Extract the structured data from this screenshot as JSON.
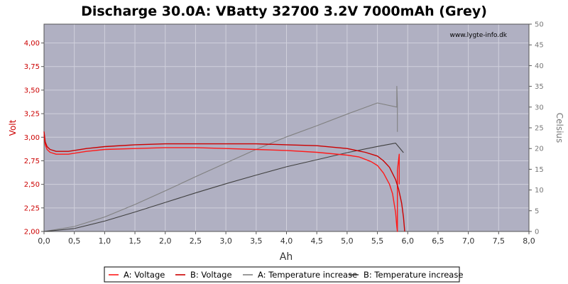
{
  "chart_data": {
    "type": "line",
    "title": "Discharge 30.0A: VBatty 32700 3.2V 7000mAh (Grey)",
    "watermark": "www.lygte-info.dk",
    "xlabel": "Ah",
    "ylabel_left": "Volt",
    "ylabel_right": "Celsius",
    "xlim": [
      0,
      8
    ],
    "ylim_left": [
      2.0,
      4.2
    ],
    "ylim_right": [
      0,
      50
    ],
    "x_ticks": [
      "0,0",
      "0,5",
      "1,0",
      "1,5",
      "2,0",
      "2,5",
      "3,0",
      "3,5",
      "4,0",
      "4,5",
      "5,0",
      "5,5",
      "6,0",
      "6,5",
      "7,0",
      "7,5",
      "8,0"
    ],
    "y_left_ticks": [
      "2,00",
      "2,25",
      "2,50",
      "2,75",
      "3,00",
      "3,25",
      "3,50",
      "3,75",
      "4,00"
    ],
    "y_right_ticks": [
      "0",
      "5",
      "10",
      "15",
      "20",
      "25",
      "30",
      "35",
      "40",
      "45",
      "50"
    ],
    "grid": true,
    "legend_position": "bottom",
    "colors": {
      "plot_bg": "#b0b0c2",
      "grid": "#d0d0dc",
      "voltage_a": "#ff1a1a",
      "voltage_b": "#cc0000",
      "temp_a": "#808080",
      "temp_b": "#404040"
    },
    "series": [
      {
        "name": "A: Voltage",
        "axis": "left",
        "color": "#ff1a1a",
        "x": [
          0.0,
          0.02,
          0.05,
          0.1,
          0.2,
          0.3,
          0.4,
          0.5,
          0.7,
          1.0,
          1.5,
          2.0,
          2.5,
          3.0,
          3.5,
          4.0,
          4.5,
          5.0,
          5.2,
          5.4,
          5.5,
          5.6,
          5.7,
          5.75,
          5.8,
          5.82,
          5.83,
          5.83,
          5.86,
          5.86
        ],
        "y": [
          3.02,
          2.92,
          2.87,
          2.84,
          2.82,
          2.82,
          2.82,
          2.83,
          2.85,
          2.87,
          2.88,
          2.89,
          2.89,
          2.88,
          2.87,
          2.86,
          2.84,
          2.81,
          2.79,
          2.74,
          2.7,
          2.62,
          2.5,
          2.4,
          2.2,
          2.05,
          2.0,
          2.65,
          2.82,
          2.5
        ]
      },
      {
        "name": "B: Voltage",
        "axis": "left",
        "color": "#cc0000",
        "x": [
          0.0,
          0.02,
          0.05,
          0.1,
          0.2,
          0.3,
          0.4,
          0.5,
          0.7,
          1.0,
          1.5,
          2.0,
          2.5,
          3.0,
          3.5,
          4.0,
          4.5,
          5.0,
          5.3,
          5.5,
          5.6,
          5.7,
          5.8,
          5.85,
          5.9,
          5.93,
          5.95
        ],
        "y": [
          3.06,
          2.95,
          2.9,
          2.87,
          2.85,
          2.85,
          2.85,
          2.86,
          2.88,
          2.9,
          2.92,
          2.93,
          2.93,
          2.93,
          2.93,
          2.92,
          2.91,
          2.88,
          2.84,
          2.8,
          2.75,
          2.68,
          2.55,
          2.45,
          2.3,
          2.15,
          2.0
        ]
      },
      {
        "name": "A: Temperature increase",
        "axis": "right",
        "color": "#808080",
        "x": [
          0.0,
          0.5,
          1.0,
          1.5,
          2.0,
          2.5,
          3.0,
          3.5,
          4.0,
          4.5,
          5.0,
          5.5,
          5.82,
          5.82,
          5.83,
          5.83
        ],
        "y": [
          0,
          1.2,
          3.5,
          6.5,
          9.8,
          13.2,
          16.5,
          19.8,
          22.8,
          25.5,
          28.3,
          31.0,
          30.0,
          35.0,
          30.5,
          24.0
        ]
      },
      {
        "name": "B: Temperature increase",
        "axis": "right",
        "color": "#404040",
        "x": [
          0.0,
          0.5,
          1.0,
          1.5,
          2.0,
          2.5,
          3.0,
          3.5,
          4.0,
          4.5,
          5.0,
          5.5,
          5.8,
          5.93
        ],
        "y": [
          0,
          0.7,
          2.5,
          4.7,
          7.0,
          9.3,
          11.5,
          13.6,
          15.6,
          17.3,
          19.0,
          20.5,
          21.3,
          19.0
        ]
      }
    ]
  }
}
